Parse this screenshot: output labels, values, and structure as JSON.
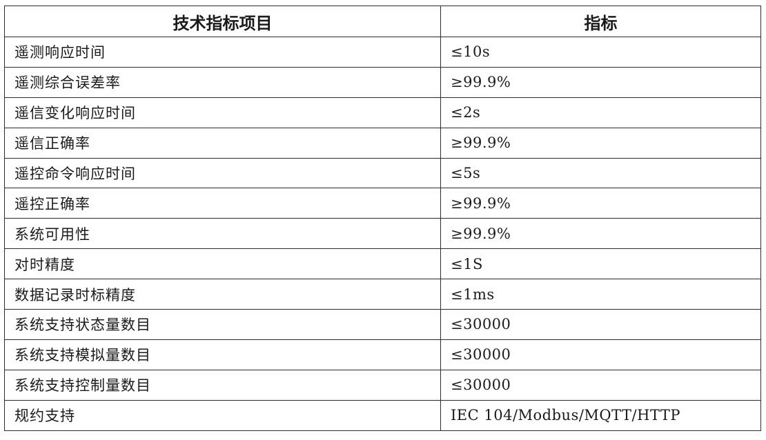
{
  "table": {
    "headers": [
      "技术指标项目",
      "指标"
    ],
    "rows": [
      {
        "item": "遥测响应时间",
        "value": "≤10s"
      },
      {
        "item": "遥测综合误差率",
        "value": "≥99.9%"
      },
      {
        "item": "遥信变化响应时间",
        "value": "≤2s"
      },
      {
        "item": "遥信正确率",
        "value": "≥99.9%"
      },
      {
        "item": "遥控命令响应时间",
        "value": "≤5s"
      },
      {
        "item": "遥控正确率",
        "value": "≥99.9%"
      },
      {
        "item": "系统可用性",
        "value": "≥99.9%"
      },
      {
        "item": "对时精度",
        "value": "≤1S"
      },
      {
        "item": "数据记录时标精度",
        "value": "≤1ms"
      },
      {
        "item": "系统支持状态量数目",
        "value": "≤30000"
      },
      {
        "item": "系统支持模拟量数目",
        "value": "≤30000"
      },
      {
        "item": "系统支持控制量数目",
        "value": "≤30000"
      },
      {
        "item": "规约支持",
        "value": "IEC 104/Modbus/MQTT/HTTP"
      }
    ]
  }
}
